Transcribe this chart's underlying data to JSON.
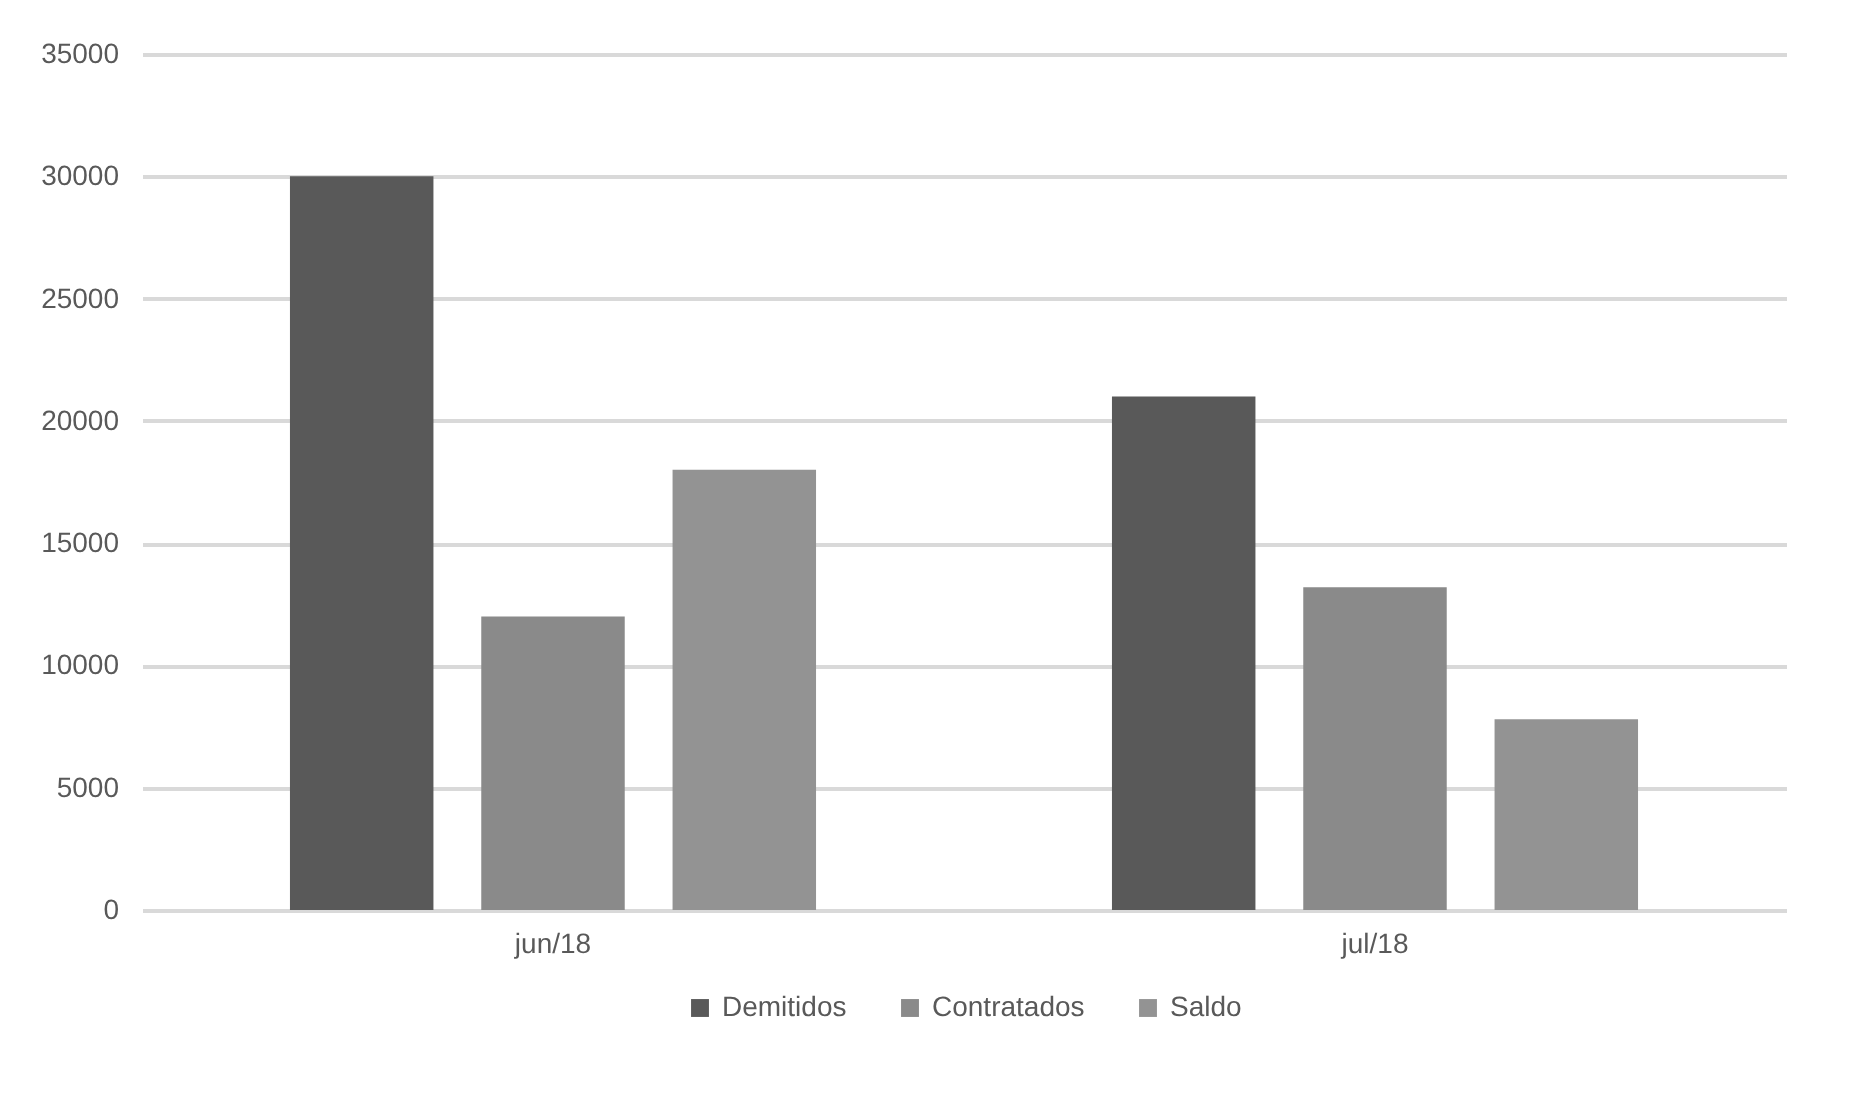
{
  "chart_data": {
    "type": "bar",
    "categories": [
      "jun/18",
      "jul/18"
    ],
    "series": [
      {
        "name": "Demitidos",
        "color": "#595959",
        "values": [
          30000,
          21000
        ]
      },
      {
        "name": "Contratados",
        "color": "#8a8a8a",
        "values": [
          12000,
          13200
        ]
      },
      {
        "name": "Saldo",
        "color": "#939393",
        "values": [
          18000,
          7800
        ]
      }
    ],
    "ylim": [
      0,
      35000
    ],
    "yticks": [
      0,
      5000,
      10000,
      15000,
      20000,
      25000,
      30000,
      35000
    ],
    "grid": "y",
    "legend": "bottom"
  }
}
